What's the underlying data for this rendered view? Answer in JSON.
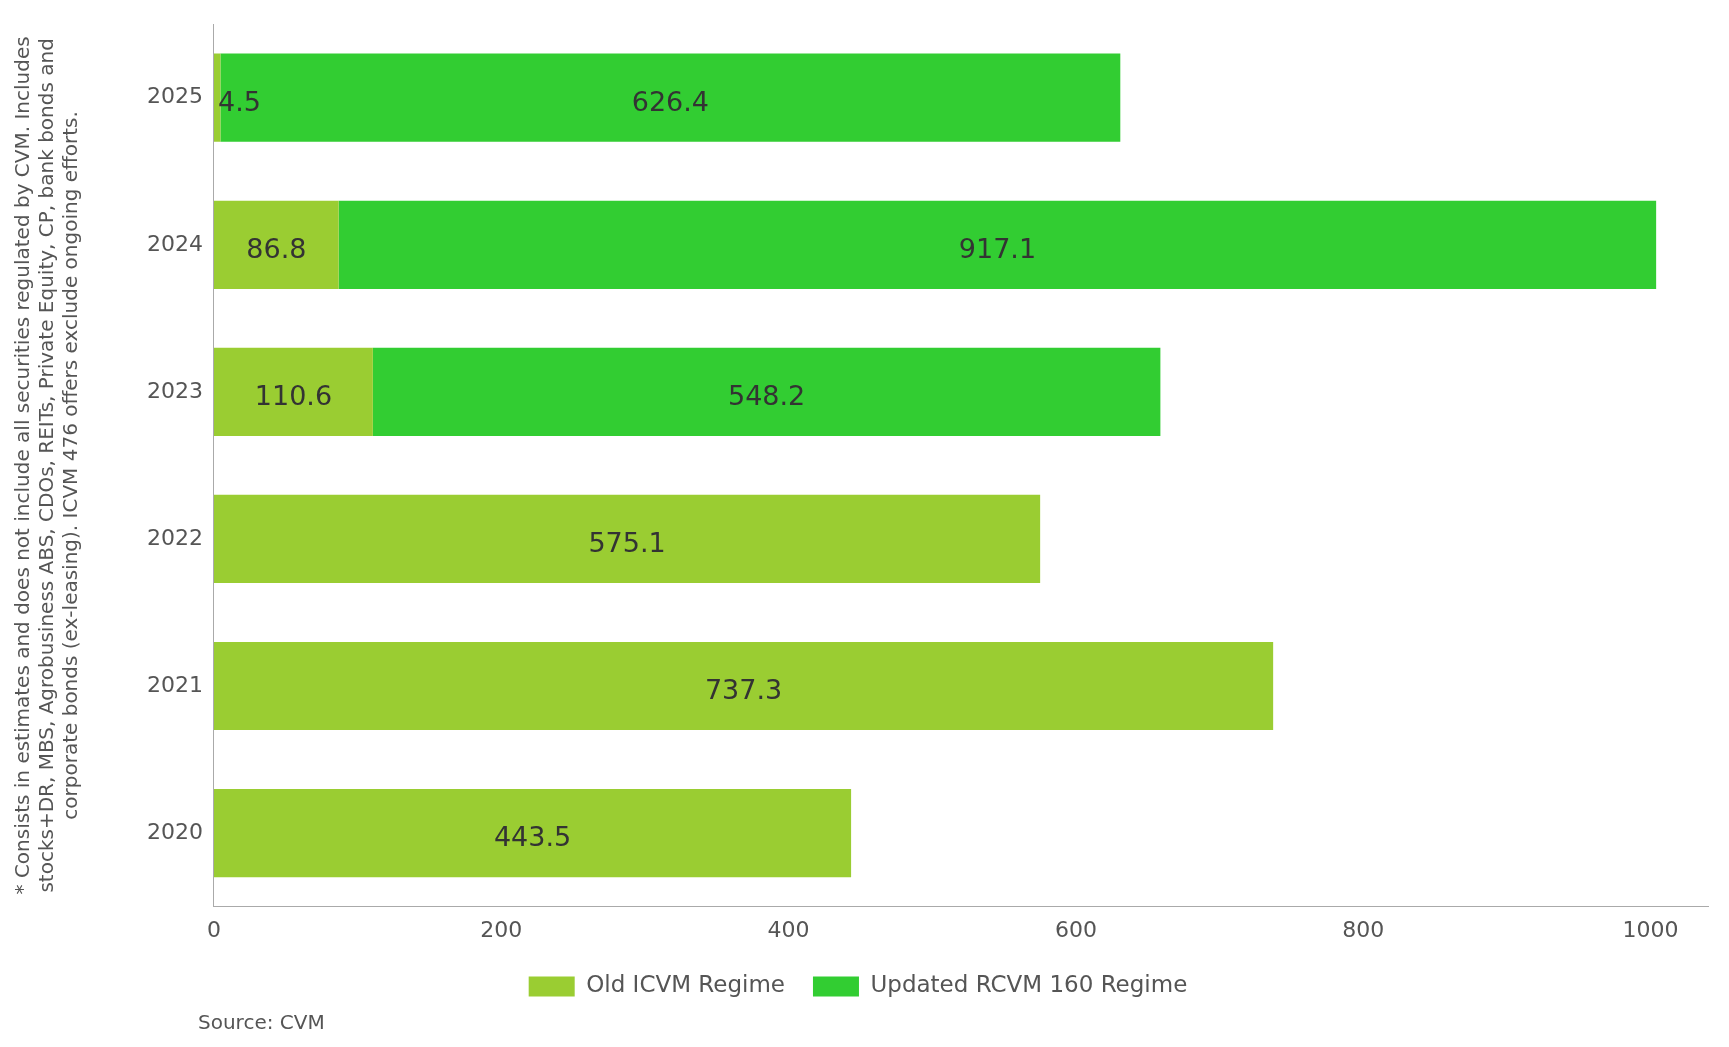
{
  "chart_data": {
    "type": "bar",
    "orientation": "horizontal",
    "stacked": true,
    "ylabel": "* Consists in estimates and does not include all securities regulated by CVM. Includes\nstocks+DR, MBS, Agrobusiness ABS, CDOs, REITs, Private Equity, CP, bank bonds and\ncorporate bonds (ex-leasing). ICVM 476 offers exclude ongoing efforts.",
    "categories": [
      "2025",
      "2024",
      "2023",
      "2022",
      "2021",
      "2020"
    ],
    "series": [
      {
        "name": "Old ICVM Regime",
        "color": "#9acd32",
        "values": [
          4.5,
          86.8,
          110.6,
          575.1,
          737.3,
          443.5
        ]
      },
      {
        "name": "Updated RCVM 160 Regime",
        "color": "#32cd32",
        "values": [
          626.4,
          917.1,
          548.2,
          null,
          null,
          null
        ]
      }
    ],
    "xlim": [
      0,
      1040
    ],
    "xticks": [
      0,
      200,
      400,
      600,
      800,
      1000
    ],
    "data_labels": true,
    "grid": false,
    "legend": "bottom",
    "annotations": [
      "Source: CVM"
    ]
  }
}
